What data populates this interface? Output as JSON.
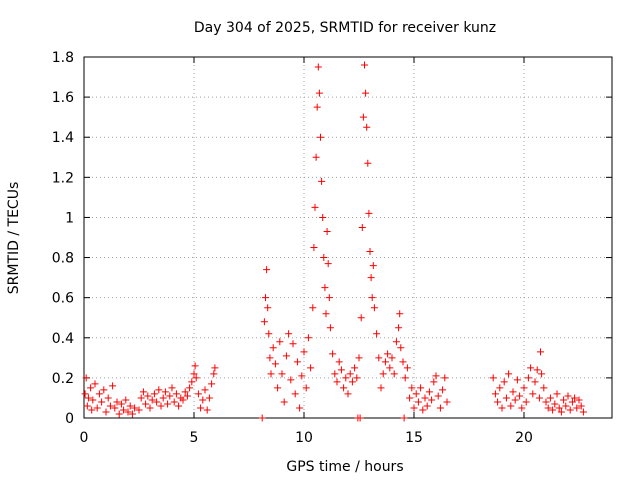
{
  "chart_data": {
    "type": "scatter",
    "title": "Day 304 of 2025, SRMTID for receiver kunz",
    "xlabel": "GPS time / hours",
    "ylabel": "SRMTID / TECUs",
    "xlim": [
      0,
      24
    ],
    "ylim": [
      0,
      1.8
    ],
    "xticks": [
      0,
      5,
      10,
      15,
      20
    ],
    "xtick_labels": [
      "0",
      "5",
      "10",
      "15",
      "20"
    ],
    "yticks": [
      0,
      0.2,
      0.4,
      0.6,
      0.8,
      1.0,
      1.2,
      1.4,
      1.6,
      1.8
    ],
    "ytick_labels": [
      "0",
      "0.2",
      "0.4",
      "0.6",
      "0.8",
      "1",
      "1.2",
      "1.4",
      "1.6",
      "1.8"
    ],
    "grid": true,
    "marker": "+",
    "marker_color": "#ff0000",
    "series": [
      {
        "name": "SRMTID",
        "points": [
          [
            0.05,
            0.12
          ],
          [
            0.1,
            0.2
          ],
          [
            0.15,
            0.06
          ],
          [
            0.2,
            0.1
          ],
          [
            0.3,
            0.15
          ],
          [
            0.35,
            0.04
          ],
          [
            0.4,
            0.09
          ],
          [
            0.5,
            0.17
          ],
          [
            0.6,
            0.05
          ],
          [
            0.7,
            0.12
          ],
          [
            0.8,
            0.08
          ],
          [
            0.9,
            0.14
          ],
          [
            1.0,
            0.03
          ],
          [
            1.1,
            0.1
          ],
          [
            1.2,
            0.06
          ],
          [
            1.3,
            0.16
          ],
          [
            1.4,
            0.05
          ],
          [
            1.5,
            0.08
          ],
          [
            1.6,
            0.02
          ],
          [
            1.7,
            0.07
          ],
          [
            1.8,
            0.04
          ],
          [
            1.9,
            0.09
          ],
          [
            2.0,
            0.03
          ],
          [
            2.1,
            0.06
          ],
          [
            2.2,
            0.02
          ],
          [
            2.3,
            0.05
          ],
          [
            2.5,
            0.04
          ],
          [
            2.6,
            0.1
          ],
          [
            2.7,
            0.13
          ],
          [
            2.8,
            0.07
          ],
          [
            2.9,
            0.11
          ],
          [
            3.0,
            0.05
          ],
          [
            3.1,
            0.09
          ],
          [
            3.2,
            0.12
          ],
          [
            3.3,
            0.08
          ],
          [
            3.4,
            0.14
          ],
          [
            3.5,
            0.06
          ],
          [
            3.6,
            0.1
          ],
          [
            3.7,
            0.13
          ],
          [
            3.8,
            0.07
          ],
          [
            3.9,
            0.11
          ],
          [
            4.0,
            0.15
          ],
          [
            4.1,
            0.08
          ],
          [
            4.2,
            0.12
          ],
          [
            4.3,
            0.06
          ],
          [
            4.4,
            0.1
          ],
          [
            4.5,
            0.09
          ],
          [
            4.6,
            0.13
          ],
          [
            4.7,
            0.11
          ],
          [
            4.8,
            0.15
          ],
          [
            4.9,
            0.18
          ],
          [
            5.0,
            0.22
          ],
          [
            5.05,
            0.26
          ],
          [
            5.1,
            0.2
          ],
          [
            5.2,
            0.12
          ],
          [
            5.3,
            0.05
          ],
          [
            5.4,
            0.09
          ],
          [
            5.5,
            0.14
          ],
          [
            5.6,
            0.04
          ],
          [
            5.7,
            0.1
          ],
          [
            5.8,
            0.17
          ],
          [
            5.9,
            0.22
          ],
          [
            5.95,
            0.25
          ],
          [
            8.1,
            0.0
          ],
          [
            8.2,
            0.48
          ],
          [
            8.25,
            0.6
          ],
          [
            8.3,
            0.74
          ],
          [
            8.35,
            0.55
          ],
          [
            8.4,
            0.42
          ],
          [
            8.45,
            0.3
          ],
          [
            8.5,
            0.22
          ],
          [
            8.6,
            0.35
          ],
          [
            8.7,
            0.27
          ],
          [
            8.8,
            0.15
          ],
          [
            8.9,
            0.38
          ],
          [
            9.0,
            0.22
          ],
          [
            9.1,
            0.08
          ],
          [
            9.2,
            0.31
          ],
          [
            9.3,
            0.42
          ],
          [
            9.4,
            0.19
          ],
          [
            9.5,
            0.37
          ],
          [
            9.6,
            0.12
          ],
          [
            9.7,
            0.28
          ],
          [
            9.8,
            0.05
          ],
          [
            9.9,
            0.21
          ],
          [
            10.0,
            0.33
          ],
          [
            10.1,
            0.15
          ],
          [
            10.2,
            0.4
          ],
          [
            10.3,
            0.25
          ],
          [
            10.4,
            0.55
          ],
          [
            10.45,
            0.85
          ],
          [
            10.5,
            1.05
          ],
          [
            10.55,
            1.3
          ],
          [
            10.6,
            1.55
          ],
          [
            10.65,
            1.75
          ],
          [
            10.7,
            1.62
          ],
          [
            10.75,
            1.4
          ],
          [
            10.8,
            1.18
          ],
          [
            10.85,
            1.0
          ],
          [
            10.9,
            0.8
          ],
          [
            10.95,
            0.65
          ],
          [
            11.0,
            0.52
          ],
          [
            11.05,
            0.93
          ],
          [
            11.1,
            0.77
          ],
          [
            11.15,
            0.6
          ],
          [
            11.2,
            0.45
          ],
          [
            11.3,
            0.32
          ],
          [
            11.4,
            0.22
          ],
          [
            11.5,
            0.18
          ],
          [
            11.6,
            0.28
          ],
          [
            11.7,
            0.24
          ],
          [
            11.8,
            0.15
          ],
          [
            11.9,
            0.2
          ],
          [
            12.0,
            0.12
          ],
          [
            12.1,
            0.22
          ],
          [
            12.2,
            0.18
          ],
          [
            12.3,
            0.25
          ],
          [
            12.4,
            0.2
          ],
          [
            12.45,
            0.0
          ],
          [
            12.5,
            0.3
          ],
          [
            12.55,
            0.0
          ],
          [
            12.6,
            0.5
          ],
          [
            12.65,
            0.95
          ],
          [
            12.7,
            1.5
          ],
          [
            12.75,
            1.76
          ],
          [
            12.8,
            1.62
          ],
          [
            12.85,
            1.45
          ],
          [
            12.9,
            1.27
          ],
          [
            12.95,
            1.02
          ],
          [
            13.0,
            0.83
          ],
          [
            13.05,
            0.7
          ],
          [
            13.1,
            0.6
          ],
          [
            13.15,
            0.76
          ],
          [
            13.2,
            0.55
          ],
          [
            13.3,
            0.42
          ],
          [
            13.4,
            0.3
          ],
          [
            13.5,
            0.15
          ],
          [
            13.6,
            0.22
          ],
          [
            13.7,
            0.28
          ],
          [
            13.8,
            0.32
          ],
          [
            13.9,
            0.25
          ],
          [
            14.0,
            0.3
          ],
          [
            14.1,
            0.22
          ],
          [
            14.2,
            0.38
          ],
          [
            14.3,
            0.45
          ],
          [
            14.35,
            0.52
          ],
          [
            14.4,
            0.35
          ],
          [
            14.5,
            0.28
          ],
          [
            14.55,
            0.0
          ],
          [
            14.6,
            0.2
          ],
          [
            14.7,
            0.25
          ],
          [
            14.8,
            0.1
          ],
          [
            14.9,
            0.15
          ],
          [
            15.0,
            0.05
          ],
          [
            15.1,
            0.12
          ],
          [
            15.2,
            0.08
          ],
          [
            15.3,
            0.15
          ],
          [
            15.4,
            0.04
          ],
          [
            15.5,
            0.1
          ],
          [
            15.6,
            0.06
          ],
          [
            15.7,
            0.13
          ],
          [
            15.8,
            0.09
          ],
          [
            15.9,
            0.18
          ],
          [
            16.0,
            0.21
          ],
          [
            16.1,
            0.11
          ],
          [
            16.2,
            0.05
          ],
          [
            16.3,
            0.14
          ],
          [
            16.4,
            0.2
          ],
          [
            16.5,
            0.08
          ],
          [
            18.6,
            0.2
          ],
          [
            18.7,
            0.12
          ],
          [
            18.8,
            0.08
          ],
          [
            18.9,
            0.15
          ],
          [
            19.0,
            0.05
          ],
          [
            19.1,
            0.18
          ],
          [
            19.2,
            0.1
          ],
          [
            19.3,
            0.22
          ],
          [
            19.4,
            0.06
          ],
          [
            19.5,
            0.13
          ],
          [
            19.6,
            0.09
          ],
          [
            19.7,
            0.19
          ],
          [
            19.8,
            0.11
          ],
          [
            19.9,
            0.05
          ],
          [
            20.0,
            0.15
          ],
          [
            20.1,
            0.08
          ],
          [
            20.2,
            0.2
          ],
          [
            20.3,
            0.25
          ],
          [
            20.4,
            0.12
          ],
          [
            20.5,
            0.18
          ],
          [
            20.6,
            0.24
          ],
          [
            20.7,
            0.1
          ],
          [
            20.75,
            0.33
          ],
          [
            20.8,
            0.22
          ],
          [
            20.9,
            0.15
          ],
          [
            21.0,
            0.08
          ],
          [
            21.1,
            0.05
          ],
          [
            21.2,
            0.1
          ],
          [
            21.3,
            0.04
          ],
          [
            21.4,
            0.07
          ],
          [
            21.5,
            0.12
          ],
          [
            21.6,
            0.05
          ],
          [
            21.7,
            0.03
          ],
          [
            21.8,
            0.09
          ],
          [
            21.9,
            0.06
          ],
          [
            22.0,
            0.11
          ],
          [
            22.1,
            0.04
          ],
          [
            22.2,
            0.08
          ],
          [
            22.3,
            0.1
          ],
          [
            22.4,
            0.05
          ],
          [
            22.5,
            0.09
          ],
          [
            22.6,
            0.06
          ],
          [
            22.7,
            0.03
          ]
        ]
      }
    ]
  }
}
